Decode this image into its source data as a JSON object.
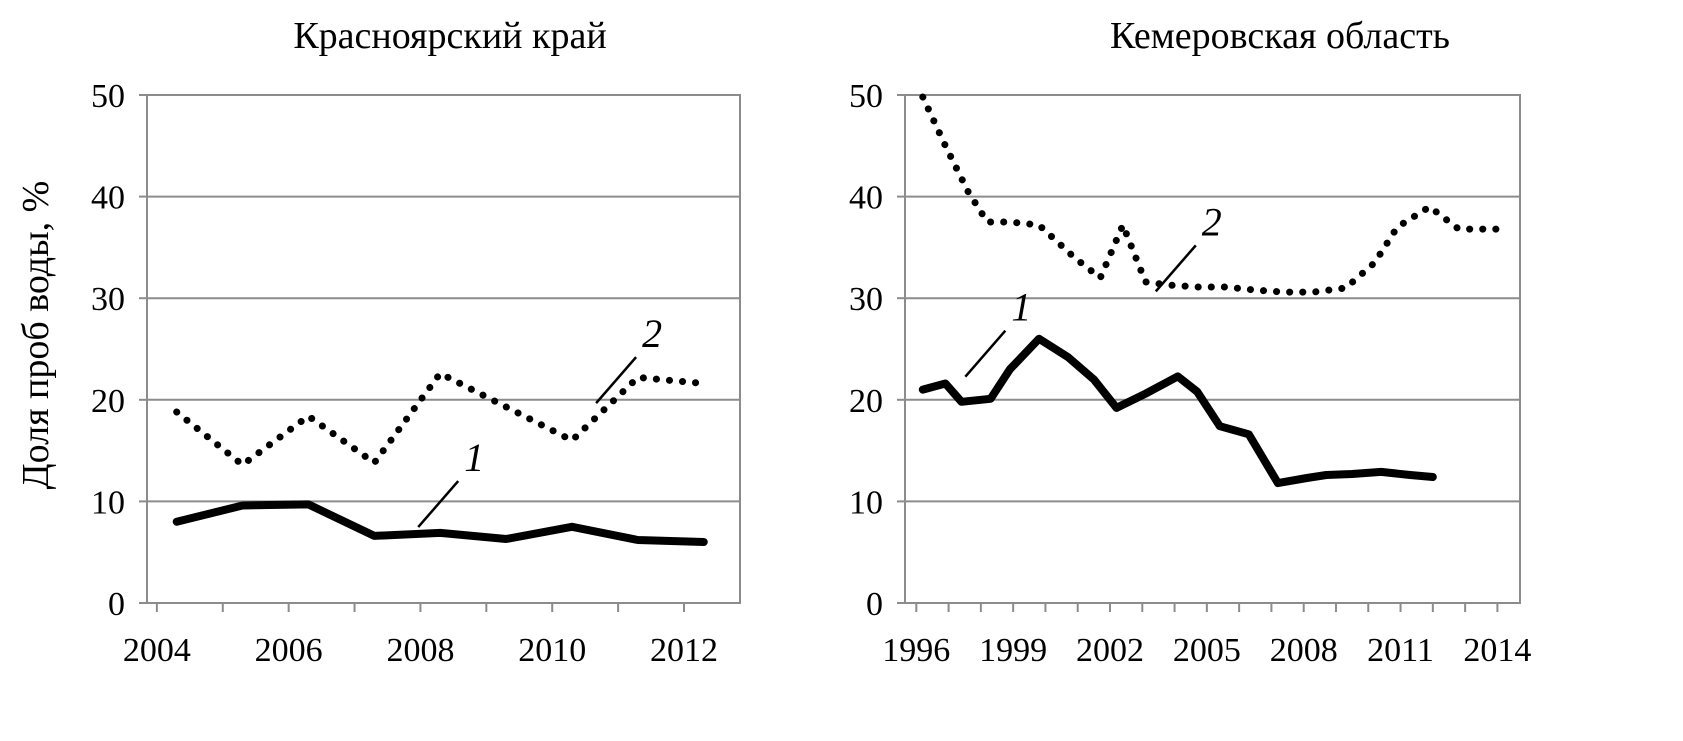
{
  "ylabel": "Доля проб воды, %",
  "chart_data": [
    {
      "type": "line",
      "title": "Красноярский край",
      "xlabel": "",
      "ylabel": "Доля проб воды, %",
      "xlim": [
        2003.85,
        2012.85
      ],
      "ylim": [
        0,
        50
      ],
      "yticks": [
        "0",
        "10",
        "20",
        "30",
        "40",
        "50"
      ],
      "xticks": [
        2004,
        2005,
        2006,
        2007,
        2008,
        2009,
        2010,
        2011,
        2012
      ],
      "xtick_labels": [
        "2004",
        "",
        "2006",
        "",
        "2008",
        "",
        "2010",
        "",
        "2012"
      ],
      "grid": true,
      "series": [
        {
          "name": "1",
          "style": "solid",
          "x": [
            2004.3,
            2005.3,
            2006.3,
            2007.3,
            2008.3,
            2009.3,
            2010.3,
            2011.3,
            2012.3
          ],
          "values": [
            8.0,
            9.6,
            9.7,
            6.6,
            6.9,
            6.3,
            7.5,
            6.2,
            6.0
          ]
        },
        {
          "name": "2",
          "style": "dotted",
          "x": [
            2004.3,
            2005.3,
            2006.3,
            2007.3,
            2008.3,
            2009.3,
            2010.3,
            2011.3,
            2012.3
          ],
          "values": [
            18.8,
            13.6,
            18.4,
            13.8,
            22.6,
            19.3,
            16.0,
            22.2,
            21.6
          ]
        }
      ],
      "annotations": [
        {
          "text": "1",
          "series": 0,
          "x": 2008.3,
          "y": 12.0
        },
        {
          "text": "2",
          "series": 1,
          "x": 2011.0,
          "y": 24.2
        }
      ]
    },
    {
      "type": "line",
      "title": "Кемеровская область",
      "xlabel": "",
      "ylabel": "",
      "xlim": [
        1995.65,
        2014.7
      ],
      "ylim": [
        0,
        50
      ],
      "yticks": [
        "0",
        "10",
        "20",
        "30",
        "40",
        "50"
      ],
      "xticks": [
        1996,
        1997,
        1998,
        1999,
        2000,
        2001,
        2002,
        2003,
        2004,
        2005,
        2006,
        2007,
        2008,
        2009,
        2010,
        2011,
        2012,
        2013,
        2014
      ],
      "xtick_labels": [
        "1996",
        "",
        "",
        "1999",
        "",
        "",
        "2002",
        "",
        "",
        "2005",
        "",
        "",
        "2008",
        "",
        "",
        "2011",
        "",
        "",
        "2014"
      ],
      "grid": true,
      "series": [
        {
          "name": "1",
          "style": "solid",
          "x": [
            1996.2,
            1996.9,
            1997.4,
            1998.3,
            1998.9,
            1999.8,
            2000.7,
            2001.5,
            2002.2,
            2003.1,
            2004.1,
            2004.7,
            2005.4,
            2006.3,
            2007.2,
            2008.1,
            2008.7,
            2009.5,
            2010.4,
            2011.3,
            2012.0
          ],
          "values": [
            21.0,
            21.6,
            19.8,
            20.1,
            23.0,
            26.0,
            24.2,
            22.0,
            19.2,
            20.6,
            22.3,
            20.8,
            17.4,
            16.6,
            11.8,
            12.3,
            12.6,
            12.7,
            12.9,
            12.6,
            12.4
          ]
        },
        {
          "name": "2",
          "style": "dotted",
          "x": [
            1996.2,
            1996.9,
            1997.6,
            1998.2,
            1998.9,
            1999.8,
            2000.9,
            2001.7,
            2002.4,
            2003.1,
            2003.8,
            2004.7,
            2005.6,
            2006.5,
            2007.4,
            2008.3,
            2009.3,
            2010.2,
            2010.9,
            2011.9,
            2012.8,
            2013.5,
            2014.0
          ],
          "values": [
            49.8,
            45.0,
            40.5,
            37.5,
            37.5,
            37.2,
            34.0,
            32.0,
            37.2,
            31.6,
            31.3,
            31.1,
            31.1,
            30.8,
            30.6,
            30.6,
            31.0,
            33.5,
            37.0,
            39.0,
            36.8,
            36.8,
            36.8
          ]
        }
      ],
      "annotations": [
        {
          "text": "1",
          "series": 0,
          "x": 1998.2,
          "y": 26.8
        },
        {
          "text": "2",
          "series": 1,
          "x": 2004.1,
          "y": 35.2
        }
      ]
    }
  ]
}
